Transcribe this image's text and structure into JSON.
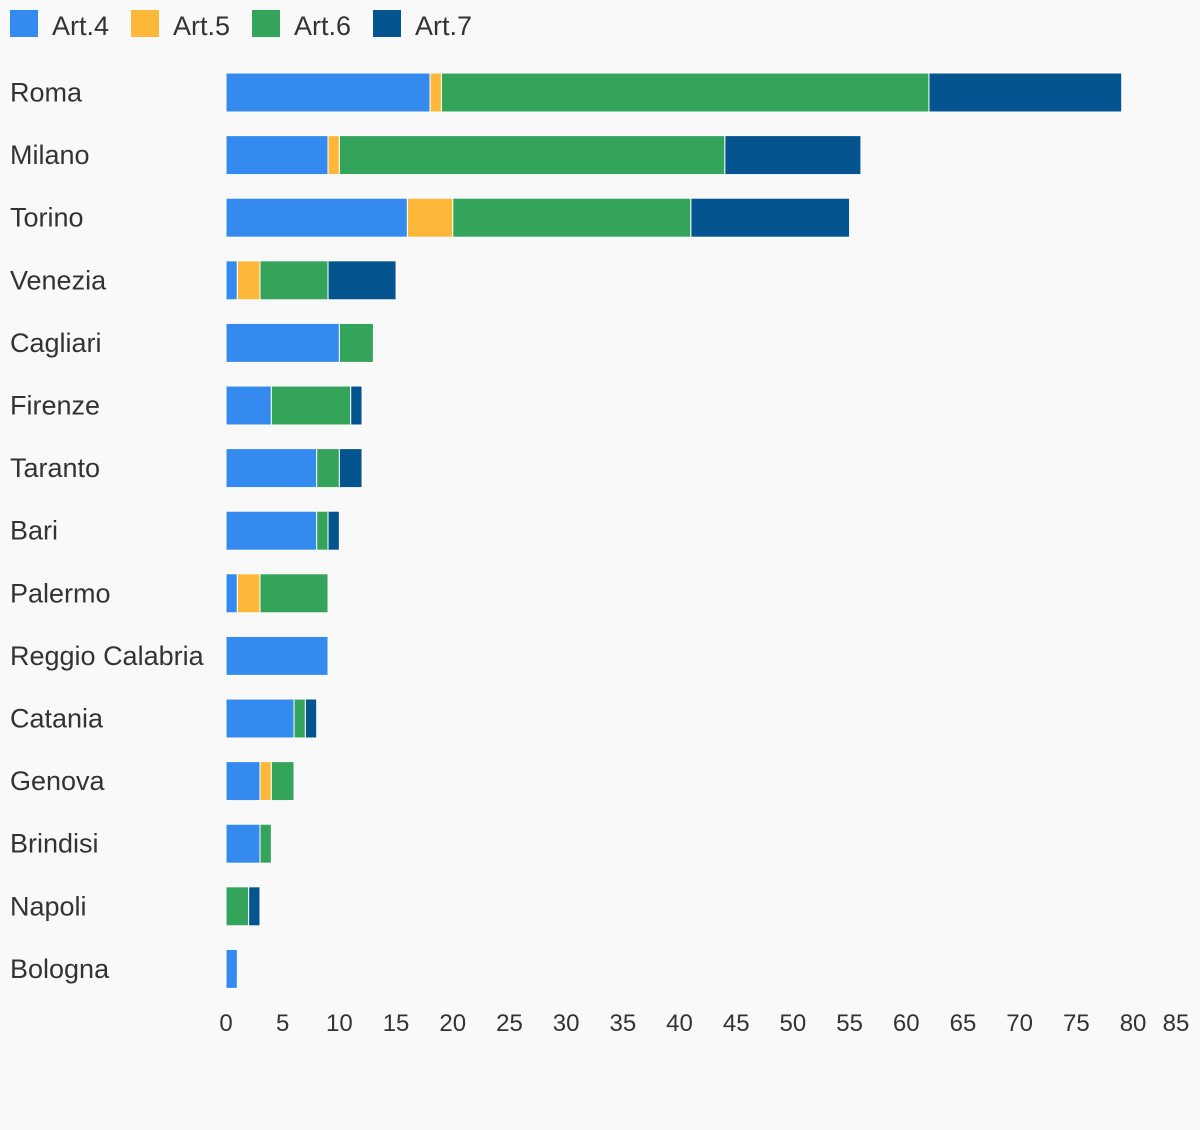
{
  "chart_data": {
    "type": "bar",
    "orientation": "horizontal",
    "stacked": true,
    "legend": "top-left",
    "grid": false,
    "categories": [
      "Roma",
      "Milano",
      "Torino",
      "Venezia",
      "Cagliari",
      "Firenze",
      "Taranto",
      "Bari",
      "Palermo",
      "Reggio Calabria",
      "Catania",
      "Genova",
      "Brindisi",
      "Napoli",
      "Bologna"
    ],
    "series": [
      {
        "name": "Art.4",
        "color": "#348AEE",
        "values": [
          18,
          9,
          16,
          1,
          10,
          4,
          8,
          8,
          1,
          9,
          6,
          3,
          3,
          0,
          1
        ]
      },
      {
        "name": "Art.5",
        "color": "#FDB83A",
        "values": [
          1,
          1,
          4,
          2,
          0,
          0,
          0,
          0,
          2,
          0,
          0,
          1,
          0,
          0,
          0
        ]
      },
      {
        "name": "Art.6",
        "color": "#33A45A",
        "values": [
          43,
          34,
          21,
          6,
          3,
          7,
          2,
          1,
          6,
          0,
          1,
          2,
          1,
          2,
          0
        ]
      },
      {
        "name": "Art.7",
        "color": "#04558F",
        "values": [
          17,
          12,
          14,
          6,
          0,
          1,
          2,
          1,
          0,
          0,
          1,
          0,
          0,
          1,
          0
        ]
      }
    ],
    "xlim": [
      0,
      85
    ],
    "xticks": [
      "0",
      "5",
      "10",
      "15",
      "20",
      "25",
      "30",
      "35",
      "40",
      "45",
      "50",
      "55",
      "60",
      "65",
      "70",
      "75",
      "80",
      "85"
    ]
  }
}
